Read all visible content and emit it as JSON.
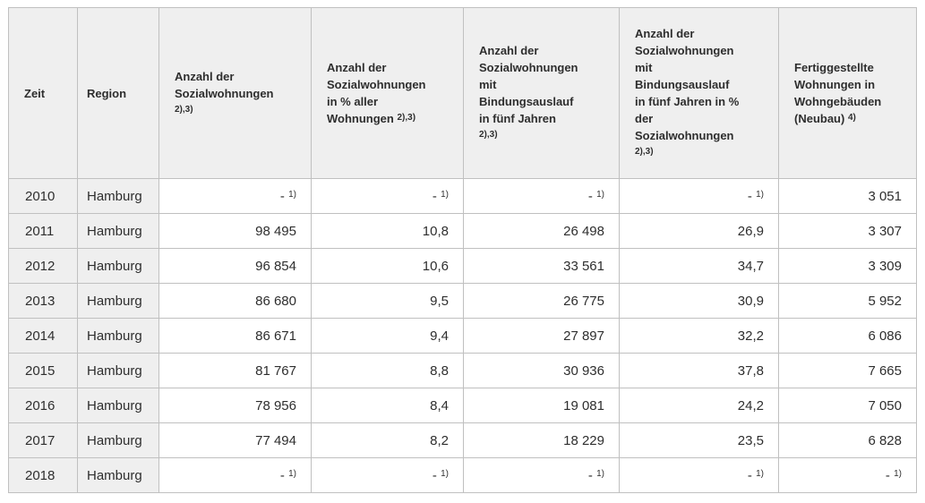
{
  "page": {
    "background": "#ffffff"
  },
  "colors": {
    "header_bg": "#efefef",
    "label_cell_bg": "#efefef",
    "data_cell_bg": "#ffffff",
    "border_inner": "#c0c0c0",
    "border_outer": "#adadad",
    "text": "#2e2e2e"
  },
  "chart_data": {
    "type": "table",
    "columns": [
      {
        "key": "zeit",
        "label": "Zeit",
        "sup": ""
      },
      {
        "key": "region",
        "label": "Region",
        "sup": ""
      },
      {
        "key": "anzahl-sozialwohnungen",
        "label": "Anzahl der\nSozialwohnungen\n",
        "sup": "2),3)"
      },
      {
        "key": "anzahl-sozialwohnungen-prozent",
        "label": "Anzahl der\nSozialwohnungen\nin % aller\nWohnungen",
        "sup": "2),3)"
      },
      {
        "key": "bindungsauslauf",
        "label": "Anzahl der\nSozialwohnungen\nmit\nBindungsauslauf\nin fünf Jahren\n",
        "sup": "2),3)"
      },
      {
        "key": "bindungsauslauf-prozent",
        "label": "Anzahl der\nSozialwohnungen\nmit\nBindungsauslauf\nin fünf Jahren in %\nder\nSozialwohnungen\n",
        "sup": "2),3)"
      },
      {
        "key": "fertiggestellte-wohnungen",
        "label": "Fertiggestellte\nWohnungen in\nWohngebäuden\n(Neubau)",
        "sup": "4)"
      }
    ],
    "rows": [
      {
        "cells": [
          {
            "v": "2010"
          },
          {
            "v": "Hamburg"
          },
          {
            "v": "-",
            "sup": "1)"
          },
          {
            "v": "-",
            "sup": "1)"
          },
          {
            "v": "-",
            "sup": "1)"
          },
          {
            "v": "-",
            "sup": "1)"
          },
          {
            "v": "3 051"
          }
        ]
      },
      {
        "cells": [
          {
            "v": "2011"
          },
          {
            "v": "Hamburg"
          },
          {
            "v": "98 495"
          },
          {
            "v": "10,8"
          },
          {
            "v": "26 498"
          },
          {
            "v": "26,9"
          },
          {
            "v": "3 307"
          }
        ]
      },
      {
        "cells": [
          {
            "v": "2012"
          },
          {
            "v": "Hamburg"
          },
          {
            "v": "96 854"
          },
          {
            "v": "10,6"
          },
          {
            "v": "33 561"
          },
          {
            "v": "34,7"
          },
          {
            "v": "3 309"
          }
        ]
      },
      {
        "cells": [
          {
            "v": "2013"
          },
          {
            "v": "Hamburg"
          },
          {
            "v": "86 680"
          },
          {
            "v": "9,5"
          },
          {
            "v": "26 775"
          },
          {
            "v": "30,9"
          },
          {
            "v": "5 952"
          }
        ]
      },
      {
        "cells": [
          {
            "v": "2014"
          },
          {
            "v": "Hamburg"
          },
          {
            "v": "86 671"
          },
          {
            "v": "9,4"
          },
          {
            "v": "27 897"
          },
          {
            "v": "32,2"
          },
          {
            "v": "6 086"
          }
        ]
      },
      {
        "cells": [
          {
            "v": "2015"
          },
          {
            "v": "Hamburg"
          },
          {
            "v": "81 767"
          },
          {
            "v": "8,8"
          },
          {
            "v": "30 936"
          },
          {
            "v": "37,8"
          },
          {
            "v": "7 665"
          }
        ]
      },
      {
        "cells": [
          {
            "v": "2016"
          },
          {
            "v": "Hamburg"
          },
          {
            "v": "78 956"
          },
          {
            "v": "8,4"
          },
          {
            "v": "19 081"
          },
          {
            "v": "24,2"
          },
          {
            "v": "7 050"
          }
        ]
      },
      {
        "cells": [
          {
            "v": "2017"
          },
          {
            "v": "Hamburg"
          },
          {
            "v": "77 494"
          },
          {
            "v": "8,2"
          },
          {
            "v": "18 229"
          },
          {
            "v": "23,5"
          },
          {
            "v": "6 828"
          }
        ]
      },
      {
        "cells": [
          {
            "v": "2018"
          },
          {
            "v": "Hamburg"
          },
          {
            "v": "-",
            "sup": "1)"
          },
          {
            "v": "-",
            "sup": "1)"
          },
          {
            "v": "-",
            "sup": "1)"
          },
          {
            "v": "-",
            "sup": "1)"
          },
          {
            "v": "-",
            "sup": "1)"
          }
        ]
      }
    ]
  }
}
